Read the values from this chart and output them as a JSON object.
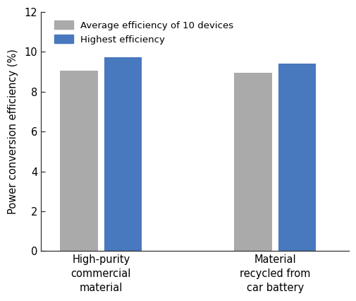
{
  "groups": [
    "High-purity\ncommercial\nmaterial",
    "Material\nrecycled from\ncar battery"
  ],
  "avg_values": [
    9.05,
    8.95
  ],
  "highest_values": [
    9.72,
    9.4
  ],
  "avg_color": "#aaaaaa",
  "highest_color": "#4878be",
  "ylabel": "Power conversion efficiency (%)",
  "ylim": [
    0,
    12
  ],
  "yticks": [
    0,
    2,
    4,
    6,
    8,
    10,
    12
  ],
  "legend_labels": [
    "Average efficiency of 10 devices",
    "Highest efficiency"
  ],
  "bar_width": 0.28,
  "group_centers": [
    1.0,
    2.3
  ],
  "bar_gap": 0.05,
  "figsize": [
    5.06,
    4.26
  ],
  "dpi": 100,
  "xlim": [
    0.55,
    2.85
  ]
}
